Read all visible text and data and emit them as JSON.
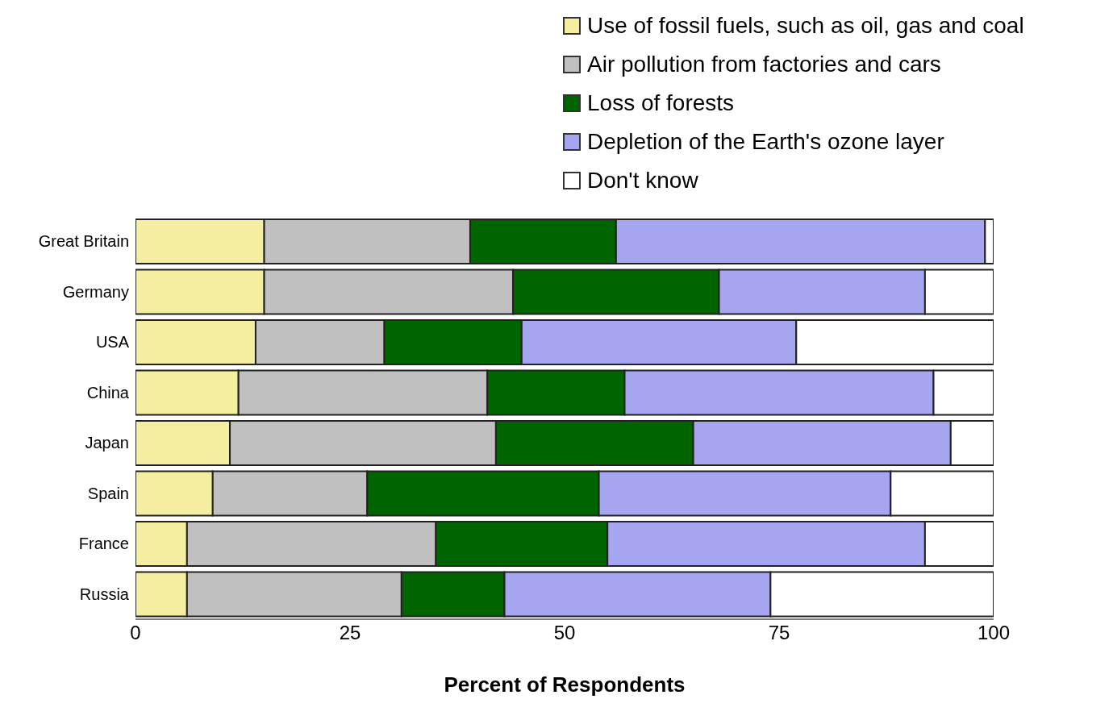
{
  "chart_data": {
    "type": "bar",
    "orientation": "horizontal",
    "stacked": true,
    "categories": [
      "Great Britain",
      "Germany",
      "USA",
      "China",
      "Japan",
      "Spain",
      "France",
      "Russia"
    ],
    "series": [
      {
        "name": "Use of fossil fuels, such as oil, gas and coal",
        "color": "#f5eea0",
        "values": [
          15,
          15,
          14,
          12,
          11,
          9,
          6,
          6
        ]
      },
      {
        "name": "Air pollution from factories and cars",
        "color": "#c0c0c0",
        "values": [
          24,
          29,
          15,
          29,
          31,
          18,
          29,
          25
        ]
      },
      {
        "name": "Loss of forests",
        "color": "#006400",
        "values": [
          17,
          24,
          16,
          16,
          23,
          27,
          20,
          12
        ]
      },
      {
        "name": "Depletion of the Earth's ozone layer",
        "color": "#a6a6f0",
        "values": [
          43,
          24,
          32,
          36,
          30,
          34,
          37,
          31
        ]
      },
      {
        "name": "Don't know",
        "color": "#ffffff",
        "values": [
          1,
          8,
          23,
          7,
          5,
          12,
          8,
          26
        ]
      }
    ],
    "xlim": [
      0,
      100
    ],
    "xticks": [
      0,
      25,
      50,
      75,
      100
    ],
    "xlabel": "Percent of Respondents",
    "legend": "top right",
    "grid": false
  }
}
